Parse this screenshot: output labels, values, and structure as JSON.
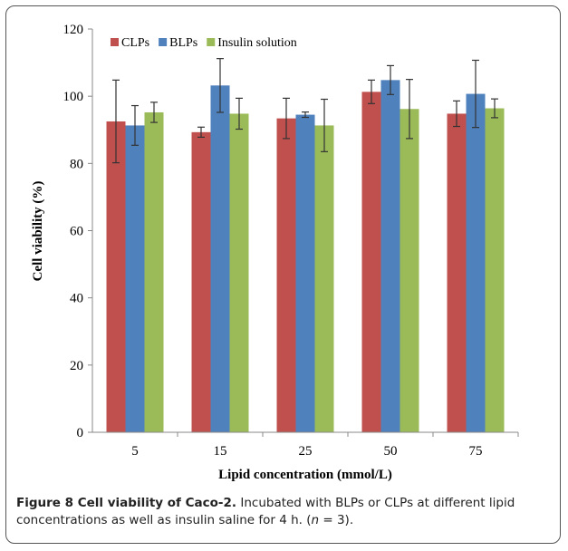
{
  "chart_data": {
    "type": "bar",
    "categories": [
      "5",
      "15",
      "25",
      "50",
      "75"
    ],
    "series": [
      {
        "name": "CLPs",
        "color": "#c0504d",
        "values": [
          92.5,
          89.3,
          93.4,
          101.3,
          94.8
        ],
        "errors": [
          12.3,
          1.5,
          6.0,
          3.5,
          3.8
        ]
      },
      {
        "name": "BLPs",
        "color": "#4f81bd",
        "values": [
          91.3,
          103.2,
          94.5,
          104.8,
          100.7
        ],
        "errors": [
          5.9,
          8.0,
          0.8,
          4.3,
          10.0
        ]
      },
      {
        "name": "Insulin solution",
        "color": "#9bbb59",
        "values": [
          95.2,
          94.8,
          91.3,
          96.2,
          96.4
        ],
        "errors": [
          3.0,
          4.6,
          7.8,
          8.8,
          2.8
        ]
      }
    ],
    "xlabel": "Lipid concentration (mmol/L)",
    "ylabel": "Cell viability (%)",
    "ylim": [
      0,
      120
    ],
    "yticks": [
      0,
      20,
      40,
      60,
      80,
      100,
      120
    ],
    "grid": false,
    "legend_position": "top-left"
  },
  "caption": {
    "title": "Figure 8 Cell viability of Caco-2.",
    "text_1": " Incubated with BLPs or CLPs at different lipid concentrations as well as insulin saline for 4 h. (",
    "n_label": "n",
    "text_2": " = 3)."
  }
}
